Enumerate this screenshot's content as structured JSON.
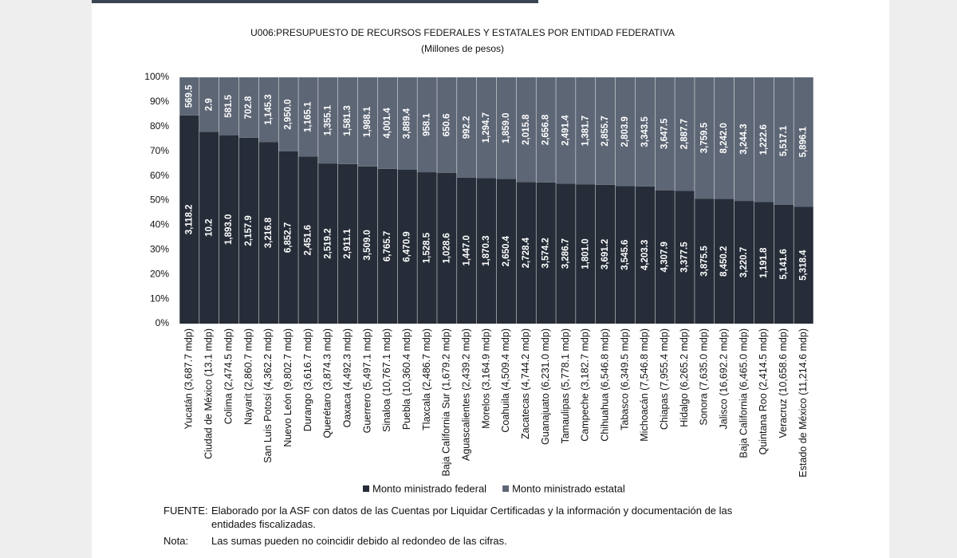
{
  "chart_data": {
    "type": "bar",
    "stack": "percent",
    "title": "U006:PRESUPUESTO DE RECURSOS FEDERALES Y ESTATALES POR ENTIDAD FEDERATIVA",
    "subtitle": "(Millones de pesos)",
    "categories": [
      "Yucatán (3,687.7 mdp)",
      "Ciudad de México (13.1 mdp)",
      "Colima (2,474.5 mdp)",
      "Nayarit (2,860.7 mdp)",
      "San Luis Potosí (4,362.2 mdp)",
      "Nuevo León (9,802.7 mdp)",
      "Durango (3,616.7 mdp)",
      "Querétaro (3,874.3 mdp)",
      "Oaxaca (4,492.3 mdp)",
      "Guerrero (5,497.1 mdp)",
      "Sinaloa (10,767.1 mdp)",
      "Puebla (10,360.4 mdp)",
      "Tlaxcala (2,486.7 mdp)",
      "Baja California Sur (1,679.2 mdp)",
      "Aguascalientes (2,439.2 mdp)",
      "Morelos (3,164.9 mdp)",
      "Coahuila (4,509.4 mdp)",
      "Zacatecas (4,744.2 mdp)",
      "Guanajuato (6,231.0 mdp)",
      "Tamaulipas (5,778.1 mdp)",
      "Campeche (3,182.7 mdp)",
      "Chihuahua (6,546.8 mdp)",
      "Tabasco (6,349.5 mdp)",
      "Michoacán (7,546.8 mdp)",
      "Chiapas (7,955.4 mdp)",
      "Hidalgo (6,265.2 mdp)",
      "Sonora (7,635.0 mdp)",
      "Jalisco (16,692.2 mdp)",
      "Baja California (6,465.0 mdp)",
      "Quintana Roo (2,414.5 mdp)",
      "Veracruz (10,658.6 mdp)",
      "Estado de México (11,214.6 mdp)"
    ],
    "series": [
      {
        "name": "Monto ministrado federal",
        "color": "#262d38",
        "values": [
          3118.2,
          10.2,
          1893.0,
          2157.9,
          3216.8,
          6852.7,
          2451.6,
          2519.2,
          2911.1,
          3509.0,
          6765.7,
          6470.9,
          1528.5,
          1028.6,
          1447.0,
          1870.3,
          2650.4,
          2728.4,
          3574.2,
          3286.7,
          1801.0,
          3691.2,
          3545.6,
          4203.3,
          4307.9,
          3377.5,
          3875.5,
          8450.2,
          3220.7,
          1191.8,
          5141.6,
          5318.4
        ],
        "value_labels": [
          "3,118.2",
          "10.2",
          "1,893.0",
          "2,157.9",
          "3,216.8",
          "6,852.7",
          "2,451.6",
          "2,519.2",
          "2,911.1",
          "3,509.0",
          "6,765.7",
          "6,470.9",
          "1,528.5",
          "1,028.6",
          "1,447.0",
          "1,870.3",
          "2,650.4",
          "2,728.4",
          "3,574.2",
          "3,286.7",
          "1,801.0",
          "3,691.2",
          "3,545.6",
          "4,203.3",
          "4,307.9",
          "3,377.5",
          "3,875.5",
          "8,450.2",
          "3,220.7",
          "1,191.8",
          "5,141.6",
          "5,318.4"
        ]
      },
      {
        "name": "Monto ministrado estatal",
        "color": "#5d6675",
        "values": [
          569.5,
          2.9,
          581.5,
          702.8,
          1145.3,
          2950.0,
          1165.1,
          1355.1,
          1581.3,
          1988.1,
          4001.4,
          3889.4,
          958.1,
          650.6,
          992.2,
          1294.7,
          1859.0,
          2015.8,
          2656.8,
          2491.4,
          1381.7,
          2855.7,
          2803.9,
          3343.5,
          3647.5,
          2887.7,
          3759.5,
          8242.0,
          3244.3,
          1222.6,
          5517.1,
          5896.1
        ],
        "value_labels": [
          "569.5",
          "2.9",
          "581.5",
          "702.8",
          "1,145.3",
          "2,950.0",
          "1,165.1",
          "1,355.1",
          "1,581.3",
          "1,988.1",
          "4,001.4",
          "3,889.4",
          "958.1",
          "650.6",
          "992.2",
          "1,294.7",
          "1,859.0",
          "2,015.8",
          "2,656.8",
          "2,491.4",
          "1,381.7",
          "2,855.7",
          "2,803.9",
          "3,343.5",
          "3,647.5",
          "2,887.7",
          "3,759.5",
          "8,242.0",
          "3,244.3",
          "1,222.6",
          "5,517.1",
          "5,896.1"
        ]
      }
    ],
    "ylim": [
      0,
      100
    ],
    "yticks": [
      {
        "value": 0,
        "label": "0%"
      },
      {
        "value": 10,
        "label": "10%"
      },
      {
        "value": 20,
        "label": "20%"
      },
      {
        "value": 30,
        "label": "30%"
      },
      {
        "value": 40,
        "label": "40%"
      },
      {
        "value": 50,
        "label": "50%"
      },
      {
        "value": 60,
        "label": "60%"
      },
      {
        "value": 70,
        "label": "70%"
      },
      {
        "value": 80,
        "label": "80%"
      },
      {
        "value": 90,
        "label": "90%"
      },
      {
        "value": 100,
        "label": "100%"
      }
    ],
    "legend": "bottom",
    "notes": [
      {
        "label": "FUENTE:",
        "text": "Elaborado por la ASF con datos de las Cuentas por Liquidar Certificadas y la información y documentación de las entidades fiscalizadas."
      },
      {
        "label": "Nota:",
        "text": "Las sumas pueden no coincidir debido al redondeo de las cifras."
      }
    ]
  }
}
